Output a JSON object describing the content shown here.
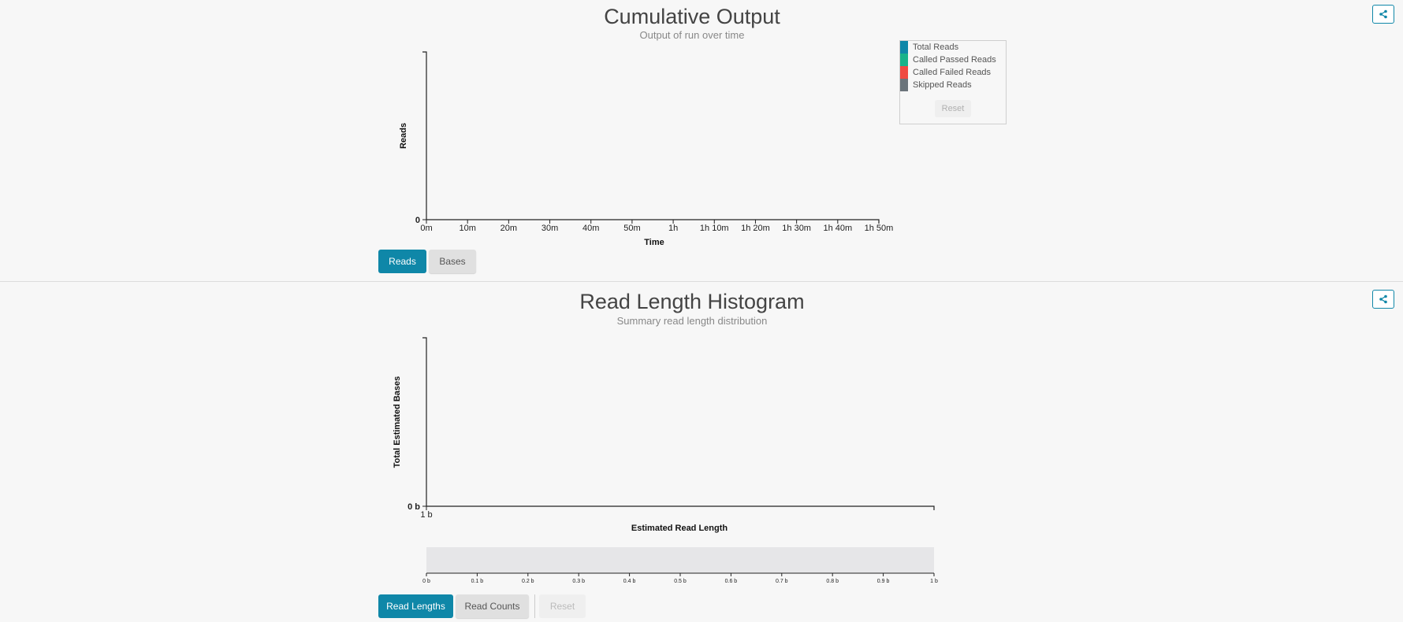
{
  "colors": {
    "accent": "#0f87a8",
    "total_reads": "#0f87a8",
    "called_passed_reads": "#18b38a",
    "called_failed_reads": "#f04a42",
    "skipped_reads": "#6b747b"
  },
  "cumulative_output": {
    "title": "Cumulative Output",
    "subtitle": "Output of run over time",
    "share_icon": "share-icon",
    "legend": {
      "items": [
        {
          "label": "Total Reads",
          "color": "#0f87a8"
        },
        {
          "label": "Called Passed Reads",
          "color": "#18b38a"
        },
        {
          "label": "Called Failed Reads",
          "color": "#f04a42"
        },
        {
          "label": "Skipped Reads",
          "color": "#6b747b"
        }
      ],
      "reset_label": "Reset"
    },
    "buttons": {
      "reads": "Reads",
      "bases": "Bases"
    }
  },
  "read_length_histogram": {
    "title": "Read Length Histogram",
    "subtitle": "Summary read length distribution",
    "share_icon": "share-icon",
    "buttons": {
      "read_lengths": "Read Lengths",
      "read_counts": "Read Counts",
      "reset": "Reset"
    }
  },
  "chart_data": [
    {
      "type": "line",
      "title": "Cumulative Output",
      "subtitle": "Output of run over time",
      "xlabel": "Time",
      "ylabel": "Reads",
      "x_ticks": [
        "0m",
        "10m",
        "20m",
        "30m",
        "40m",
        "50m",
        "1h",
        "1h 10m",
        "1h 20m",
        "1h 30m",
        "1h 40m",
        "1h 50m"
      ],
      "y_ticks": [
        "0"
      ],
      "series": [
        {
          "name": "Total Reads",
          "values": []
        },
        {
          "name": "Called Passed Reads",
          "values": []
        },
        {
          "name": "Called Failed Reads",
          "values": []
        },
        {
          "name": "Skipped Reads",
          "values": []
        }
      ],
      "legend": "top-right",
      "grid": false
    },
    {
      "type": "bar",
      "title": "Read Length Histogram",
      "subtitle": "Summary read length distribution",
      "xlabel": "Estimated Read Length",
      "ylabel": "Total Estimated Bases",
      "x_ticks": [
        "1 b"
      ],
      "y_ticks": [
        "0 b"
      ],
      "values": [],
      "brush_ticks": [
        "0 b",
        "0.1 b",
        "0.2 b",
        "0.3 b",
        "0.4 b",
        "0.5 b",
        "0.6 b",
        "0.7 b",
        "0.8 b",
        "0.9 b",
        "1 b"
      ],
      "grid": false
    }
  ]
}
